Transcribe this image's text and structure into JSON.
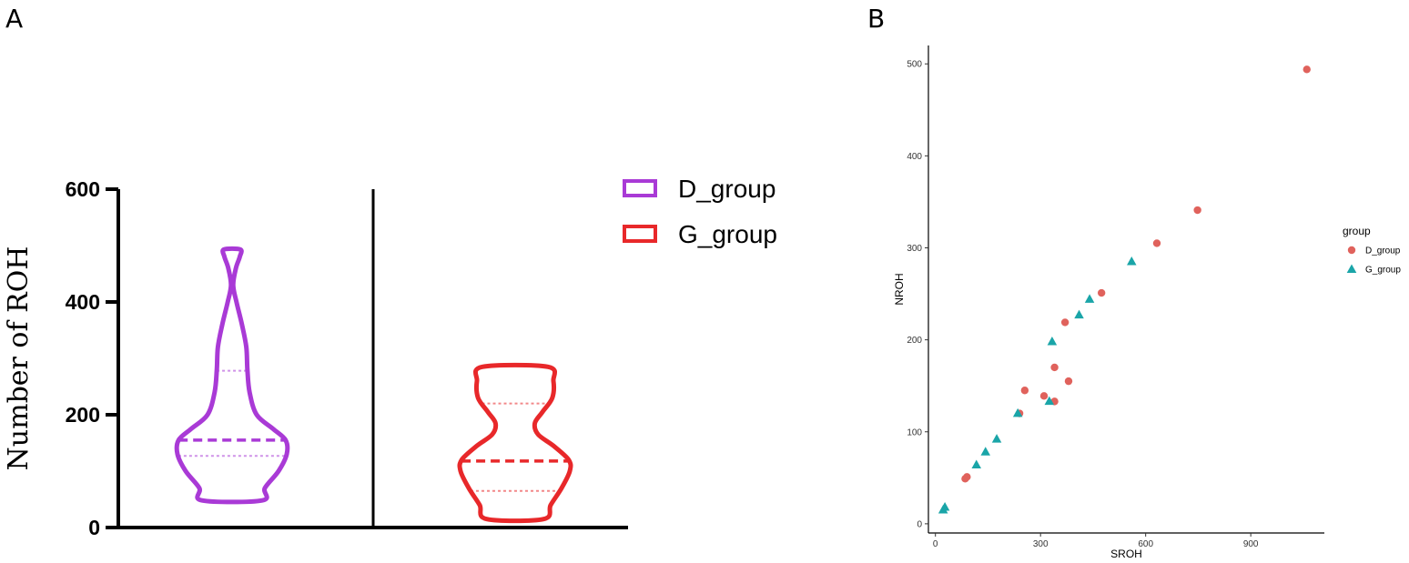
{
  "panel_a_label": "A",
  "panel_b_label": "B",
  "chart_data": [
    {
      "type": "violin",
      "ylabel": "Number of ROH",
      "yticks": [
        0,
        200,
        400,
        600
      ],
      "ylim": [
        0,
        600
      ],
      "legend_position": "top-right",
      "series": [
        {
          "name": "D_group",
          "color": "#a93ad6",
          "min": 48,
          "max": 493,
          "median": 155,
          "q1": 127,
          "q3": 278,
          "density": [
            [
              48,
              0.55
            ],
            [
              70,
              0.6
            ],
            [
              100,
              0.85
            ],
            [
              130,
              1.0
            ],
            [
              155,
              0.98
            ],
            [
              175,
              0.75
            ],
            [
              200,
              0.45
            ],
            [
              240,
              0.32
            ],
            [
              280,
              0.28
            ],
            [
              320,
              0.26
            ],
            [
              360,
              0.18
            ],
            [
              400,
              0.08
            ],
            [
              430,
              0.02
            ],
            [
              460,
              0.07
            ],
            [
              480,
              0.14
            ],
            [
              493,
              0.15
            ]
          ]
        },
        {
          "name": "G_group",
          "color": "#e8282a",
          "min": 15,
          "max": 285,
          "median": 118,
          "q1": 65,
          "q3": 220,
          "density": [
            [
              15,
              0.52
            ],
            [
              40,
              0.65
            ],
            [
              70,
              0.85
            ],
            [
              100,
              1.0
            ],
            [
              120,
              0.98
            ],
            [
              145,
              0.7
            ],
            [
              165,
              0.42
            ],
            [
              185,
              0.36
            ],
            [
              205,
              0.5
            ],
            [
              230,
              0.68
            ],
            [
              260,
              0.7
            ],
            [
              285,
              0.6
            ]
          ]
        }
      ]
    },
    {
      "type": "scatter",
      "xlabel": "SROH",
      "ylabel": "NROH",
      "xticks": [
        0,
        300,
        600,
        900
      ],
      "yticks": [
        0,
        100,
        200,
        300,
        400,
        500
      ],
      "xlim": [
        -20,
        1110
      ],
      "ylim": [
        -10,
        520
      ],
      "legend_title": "group",
      "legend_position": "right",
      "series": [
        {
          "name": "D_group",
          "color": "#e0625c",
          "marker": "circle",
          "points": [
            [
              1060,
              494
            ],
            [
              748,
              341
            ],
            [
              632,
              305
            ],
            [
              474,
              251
            ],
            [
              370,
              219
            ],
            [
              255,
              145
            ],
            [
              340,
              170
            ],
            [
              310,
              139
            ],
            [
              380,
              155
            ],
            [
              340,
              133
            ],
            [
              90,
              51
            ],
            [
              85,
              49
            ],
            [
              240,
              120
            ]
          ]
        },
        {
          "name": "G_group",
          "color": "#1aa5a8",
          "marker": "triangle",
          "points": [
            [
              27,
              18
            ],
            [
              22,
              15
            ],
            [
              117,
              64
            ],
            [
              143,
              78
            ],
            [
              175,
              92
            ],
            [
              235,
              120
            ],
            [
              325,
              133
            ],
            [
              333,
              198
            ],
            [
              410,
              227
            ],
            [
              440,
              244
            ],
            [
              560,
              285
            ]
          ]
        }
      ]
    }
  ]
}
